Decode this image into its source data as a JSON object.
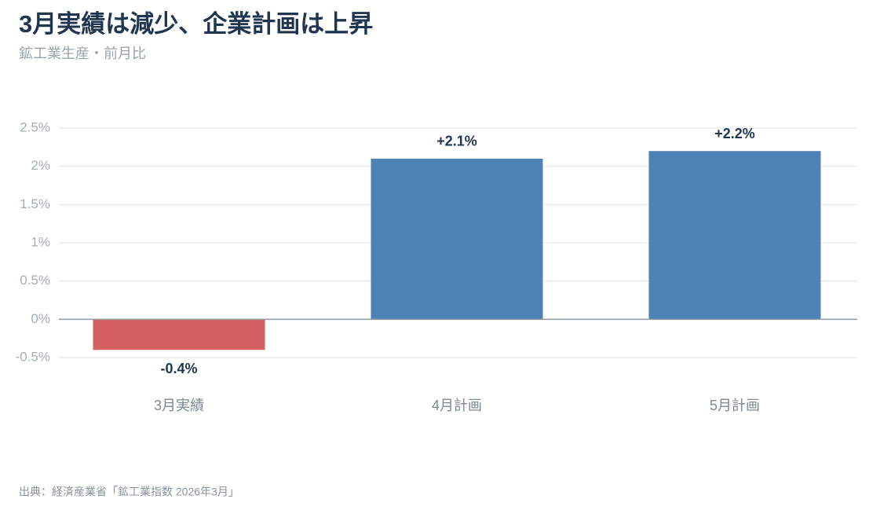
{
  "chart_data": {
    "type": "bar",
    "title": "3月実績は減少、企業計画は上昇",
    "subtitle": "鉱工業生産・前月比",
    "source": "出典：経済産業省「鉱工業指数 2026年3月」",
    "categories": [
      "3月実績",
      "4月計画",
      "5月計画"
    ],
    "values": [
      -0.4,
      2.1,
      2.2
    ],
    "value_labels": [
      "-0.4%",
      "+2.1%",
      "+2.2%"
    ],
    "colors": [
      "#d65f5f",
      "#4d82b4",
      "#4d82b4"
    ],
    "ylim": [
      -0.5,
      2.5
    ],
    "yticks": [
      {
        "value": -0.5,
        "label": "-0.5%"
      },
      {
        "value": 0,
        "label": "0%"
      },
      {
        "value": 0.5,
        "label": "0.5%"
      },
      {
        "value": 1,
        "label": "1%"
      },
      {
        "value": 1.5,
        "label": "1.5%"
      },
      {
        "value": 2,
        "label": "2%"
      },
      {
        "value": 2.5,
        "label": "2.5%"
      }
    ],
    "grid": true
  }
}
